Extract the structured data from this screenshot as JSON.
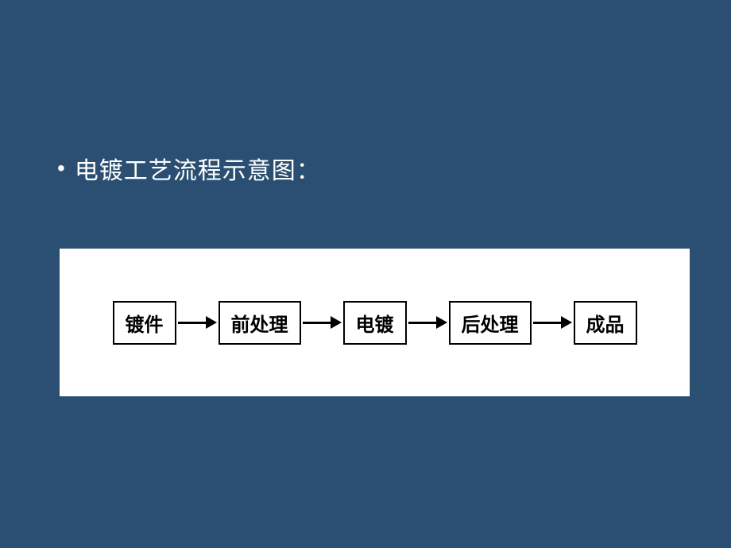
{
  "slide": {
    "background_color": "#2a4f72",
    "bullet": "•",
    "title": "电镀工艺流程示意图：",
    "title_color": "#ffffff",
    "title_fontsize": 30
  },
  "flowchart": {
    "type": "flowchart",
    "container_background": "#ffffff",
    "box_border_color": "#000000",
    "box_background": "#ffffff",
    "box_text_color": "#000000",
    "box_fontsize": 24,
    "box_border_width": 2,
    "arrow_color": "#000000",
    "arrow_line_width": 3,
    "nodes": [
      {
        "id": "n1",
        "label": "镀件"
      },
      {
        "id": "n2",
        "label": "前处理"
      },
      {
        "id": "n3",
        "label": "电镀"
      },
      {
        "id": "n4",
        "label": "后处理"
      },
      {
        "id": "n5",
        "label": "成品"
      }
    ],
    "edges": [
      {
        "from": "n1",
        "to": "n2"
      },
      {
        "from": "n2",
        "to": "n3"
      },
      {
        "from": "n3",
        "to": "n4"
      },
      {
        "from": "n4",
        "to": "n5"
      }
    ]
  }
}
